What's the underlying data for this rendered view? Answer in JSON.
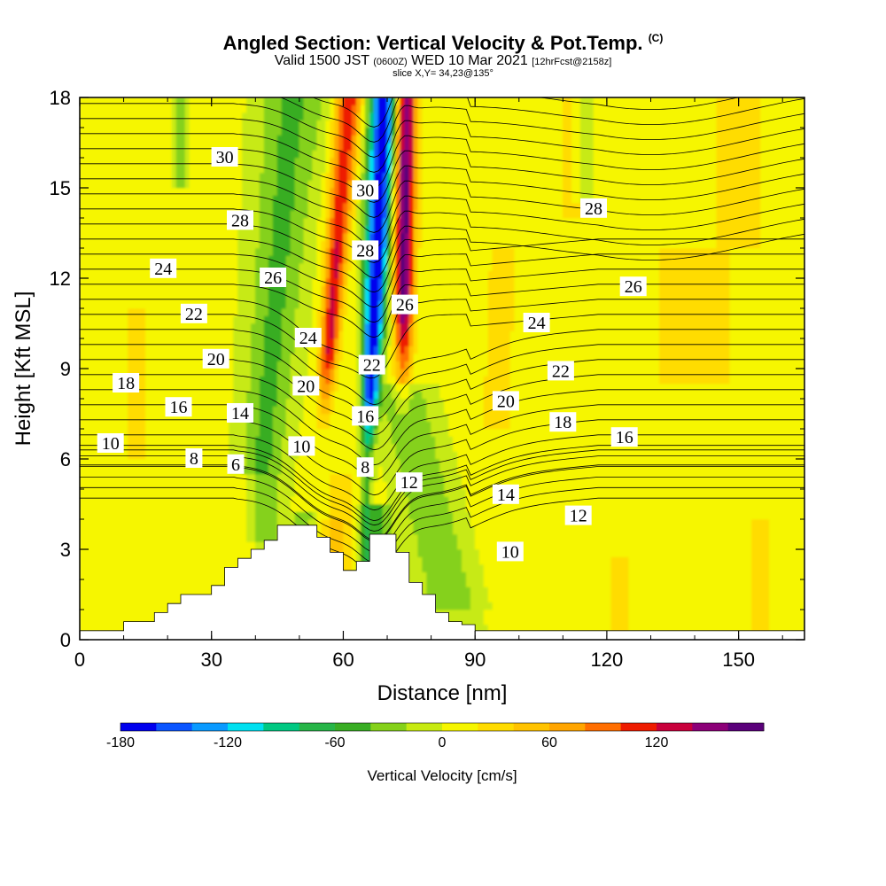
{
  "title": {
    "main": "Angled Section: Vertical Velocity & Pot.Temp.",
    "main_suffix": "(C)",
    "valid_a": "Valid 1500 JST",
    "valid_b": "(0600Z)",
    "valid_c": "WED 10 Mar 2021",
    "valid_d": "[12hrFcst@2158z]",
    "slice": "slice X,Y= 34,23@135°"
  },
  "chart_data": {
    "type": "heatmap",
    "xlabel": "Distance [nm]",
    "ylabel": "Height [Kft MSL]",
    "xlim": [
      0,
      165
    ],
    "ylim": [
      0,
      18
    ],
    "xticks": [
      "0",
      "30",
      "60",
      "90",
      "120",
      "150"
    ],
    "yticks": [
      "0",
      "3",
      "6",
      "9",
      "12",
      "15",
      "18"
    ],
    "field": "Vertical Velocity",
    "colorbar": {
      "label": "Vertical Velocity [cm/s]",
      "tick_labels": [
        "-180",
        "-120",
        "-60",
        "0",
        "60",
        "120"
      ],
      "levels": [
        -180,
        -160,
        -140,
        -120,
        -100,
        -80,
        -60,
        -40,
        -20,
        0,
        20,
        40,
        60,
        80,
        100,
        120,
        140,
        160
      ],
      "colors": [
        "#0000ee",
        "#0b55ff",
        "#0a9aff",
        "#00e0f0",
        "#00c882",
        "#27b548",
        "#39ad24",
        "#85d11a",
        "#c7ea12",
        "#f6f600",
        "#ffdc00",
        "#ffc300",
        "#ffa500",
        "#ff6e00",
        "#ee1c00",
        "#c8003c",
        "#8c0078",
        "#5a007a"
      ]
    },
    "terrain": {
      "x": [
        0,
        10,
        10,
        17,
        20,
        23,
        30,
        33,
        36,
        39,
        42,
        45,
        48,
        51,
        54,
        57,
        60,
        63,
        66,
        69,
        72,
        75,
        78,
        81,
        84,
        87,
        90,
        93,
        165
      ],
      "height": [
        0.3,
        0.3,
        0.6,
        0.9,
        1.2,
        1.5,
        1.8,
        2.4,
        2.7,
        3.0,
        3.3,
        3.8,
        3.8,
        3.8,
        3.4,
        2.9,
        2.3,
        2.6,
        3.5,
        3.5,
        2.9,
        1.9,
        1.5,
        0.9,
        0.6,
        0.5,
        0.3,
        0.3,
        0.3
      ]
    },
    "contour_labels": [
      {
        "text": "30",
        "x": 33,
        "y": 16.0
      },
      {
        "text": "28",
        "x": 36.5,
        "y": 13.9
      },
      {
        "text": "24",
        "x": 19,
        "y": 12.3
      },
      {
        "text": "26",
        "x": 44,
        "y": 12.0
      },
      {
        "text": "22",
        "x": 26,
        "y": 10.8
      },
      {
        "text": "24",
        "x": 52,
        "y": 10.0
      },
      {
        "text": "20",
        "x": 31,
        "y": 9.3
      },
      {
        "text": "20",
        "x": 51.5,
        "y": 8.4
      },
      {
        "text": "18",
        "x": 10.5,
        "y": 8.5
      },
      {
        "text": "16",
        "x": 22.5,
        "y": 7.7
      },
      {
        "text": "14",
        "x": 36.5,
        "y": 7.5
      },
      {
        "text": "10",
        "x": 50.5,
        "y": 6.4
      },
      {
        "text": "10",
        "x": 7,
        "y": 6.5
      },
      {
        "text": "8",
        "x": 26,
        "y": 6.0
      },
      {
        "text": "6",
        "x": 35.5,
        "y": 5.8
      },
      {
        "text": "30",
        "x": 65,
        "y": 14.9
      },
      {
        "text": "28",
        "x": 65,
        "y": 12.9
      },
      {
        "text": "26",
        "x": 74,
        "y": 11.1
      },
      {
        "text": "22",
        "x": 66.5,
        "y": 9.1
      },
      {
        "text": "16",
        "x": 65,
        "y": 7.4
      },
      {
        "text": "8",
        "x": 65,
        "y": 5.7
      },
      {
        "text": "12",
        "x": 75,
        "y": 5.2
      },
      {
        "text": "24",
        "x": 104,
        "y": 10.5
      },
      {
        "text": "22",
        "x": 109.5,
        "y": 8.9
      },
      {
        "text": "20",
        "x": 97,
        "y": 7.9
      },
      {
        "text": "18",
        "x": 110,
        "y": 7.2
      },
      {
        "text": "16",
        "x": 124,
        "y": 6.7
      },
      {
        "text": "14",
        "x": 97,
        "y": 4.8
      },
      {
        "text": "12",
        "x": 113.5,
        "y": 4.1
      },
      {
        "text": "10",
        "x": 98,
        "y": 2.9
      },
      {
        "text": "28",
        "x": 117,
        "y": 14.3
      },
      {
        "text": "26",
        "x": 126,
        "y": 11.7
      }
    ]
  }
}
